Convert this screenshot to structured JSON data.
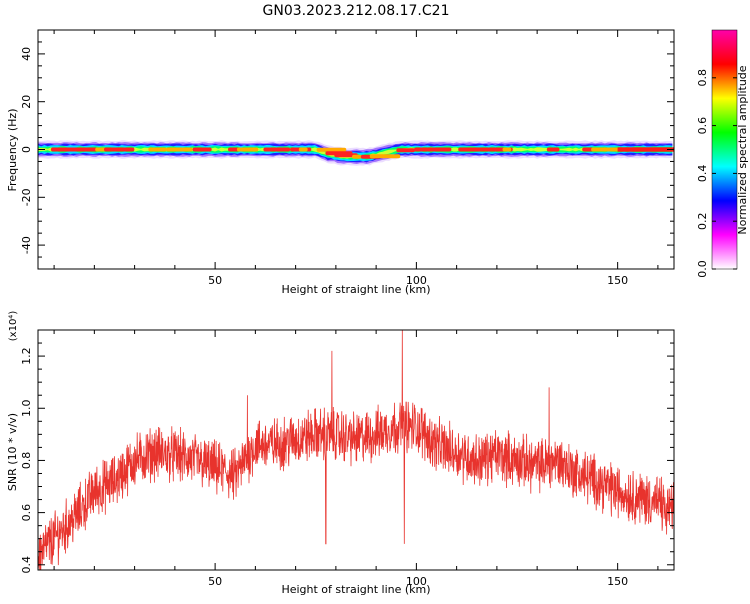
{
  "title": "GN03.2023.212.08.17.C21",
  "chart_data": [
    {
      "type": "heatmap",
      "xlabel": "Height of straight line (km)",
      "ylabel": "Frequency (Hz)",
      "xlim": [
        6,
        164
      ],
      "ylim": [
        -50,
        50
      ],
      "xticks": [
        50,
        100,
        150
      ],
      "yticks": [
        -40,
        -20,
        0,
        20,
        40
      ],
      "colorbar": {
        "label": "Normalized spectral amplitude",
        "range": [
          0,
          1
        ],
        "ticks": [
          "0.0",
          "0.2",
          "0.4",
          "0.6",
          "0.8"
        ],
        "colors": [
          "#ffffff",
          "#ff00ff",
          "#0000ff",
          "#00ffff",
          "#00ff00",
          "#ffff00",
          "#ff0000",
          "#ff00aa"
        ]
      },
      "band_center_hz": [
        {
          "x": 6,
          "f": 0
        },
        {
          "x": 75,
          "f": 0
        },
        {
          "x": 78,
          "f": -2
        },
        {
          "x": 82,
          "f": -3
        },
        {
          "x": 88,
          "f": -3
        },
        {
          "x": 93,
          "f": -1
        },
        {
          "x": 96,
          "f": 0
        },
        {
          "x": 164,
          "f": 0
        }
      ],
      "band_halfwidth_hz": 3
    },
    {
      "type": "line",
      "xlabel": "Height of straight line (km)",
      "ylabel": "SNR (10 * v/v)",
      "yscale_label": "(x10⁴)",
      "xlim": [
        6,
        164
      ],
      "ylim": [
        0.38,
        1.3
      ],
      "xticks": [
        50,
        100,
        150
      ],
      "yticks": [
        "0.4",
        "0.6",
        "0.8",
        "1.0",
        "1.2"
      ],
      "series": [
        {
          "color": "#e8332d",
          "envelope": [
            {
              "x": 6,
              "y": 0.44
            },
            {
              "x": 10,
              "y": 0.5
            },
            {
              "x": 15,
              "y": 0.58
            },
            {
              "x": 20,
              "y": 0.68
            },
            {
              "x": 25,
              "y": 0.72
            },
            {
              "x": 30,
              "y": 0.8
            },
            {
              "x": 35,
              "y": 0.83
            },
            {
              "x": 40,
              "y": 0.82
            },
            {
              "x": 45,
              "y": 0.8
            },
            {
              "x": 50,
              "y": 0.77
            },
            {
              "x": 55,
              "y": 0.74
            },
            {
              "x": 60,
              "y": 0.86
            },
            {
              "x": 65,
              "y": 0.86
            },
            {
              "x": 70,
              "y": 0.88
            },
            {
              "x": 75,
              "y": 0.9
            },
            {
              "x": 80,
              "y": 0.9
            },
            {
              "x": 85,
              "y": 0.88
            },
            {
              "x": 90,
              "y": 0.9
            },
            {
              "x": 95,
              "y": 0.93
            },
            {
              "x": 100,
              "y": 0.93
            },
            {
              "x": 105,
              "y": 0.86
            },
            {
              "x": 110,
              "y": 0.83
            },
            {
              "x": 115,
              "y": 0.8
            },
            {
              "x": 120,
              "y": 0.82
            },
            {
              "x": 125,
              "y": 0.8
            },
            {
              "x": 130,
              "y": 0.78
            },
            {
              "x": 135,
              "y": 0.8
            },
            {
              "x": 140,
              "y": 0.75
            },
            {
              "x": 145,
              "y": 0.72
            },
            {
              "x": 150,
              "y": 0.68
            },
            {
              "x": 155,
              "y": 0.66
            },
            {
              "x": 160,
              "y": 0.64
            },
            {
              "x": 164,
              "y": 0.6
            }
          ],
          "peaks": [
            {
              "x": 79,
              "y": 1.22
            },
            {
              "x": 96.5,
              "y": 1.3
            },
            {
              "x": 133,
              "y": 1.08
            },
            {
              "x": 58,
              "y": 1.05
            }
          ],
          "dips": [
            {
              "x": 77.5,
              "y": 0.48
            },
            {
              "x": 97,
              "y": 0.48
            },
            {
              "x": 162,
              "y": 0.55
            },
            {
              "x": 6.5,
              "y": 0.38
            }
          ]
        }
      ]
    }
  ]
}
